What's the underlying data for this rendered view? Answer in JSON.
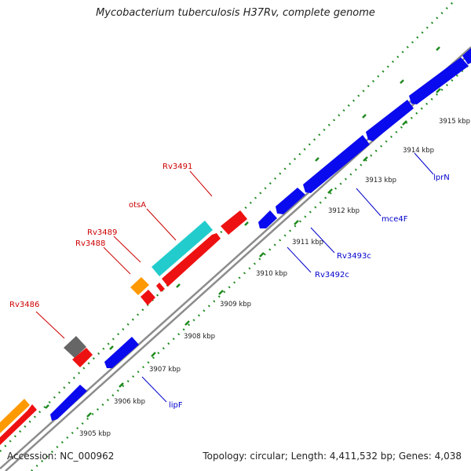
{
  "title": "Mycobacterium tuberculosis H37Rv, complete genome",
  "accession": "Accession: NC_000962",
  "summary": "Topology: circular; Length: 4,411,532 bp; Genes: 4,038",
  "colors": {
    "backbone": "#8c8c8c",
    "tick_dots": "#1f8a1f",
    "forward_label": "#cc0000",
    "reverse_label": "#0000cc",
    "gene_red": "#ee1111",
    "gene_blue": "#0a0aee",
    "gene_orange": "#ff9900",
    "gene_cyan": "#22cccc",
    "gene_gray": "#666666"
  },
  "ticks": [
    "3905 kbp",
    "3906 kbp",
    "3907 kbp",
    "3908 kbp",
    "3909 kbp",
    "3910 kbp",
    "3911 kbp",
    "3912 kbp",
    "3913 kbp",
    "3914 kbp",
    "3915 kbp"
  ],
  "forward_labels": [
    "Rv3486",
    "Rv3488",
    "Rv3489",
    "otsA",
    "Rv3491"
  ],
  "reverse_labels": [
    "lipF",
    "Rv3492c",
    "Rv3493c",
    "mce4F",
    "lprN"
  ]
}
